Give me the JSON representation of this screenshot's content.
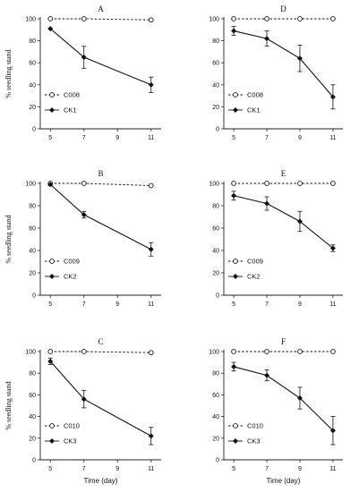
{
  "figure": {
    "ylabel": "% seedling stand",
    "xlabel": "Time (day)"
  },
  "chart_data": [
    {
      "type": "line",
      "title": "A",
      "x": [
        5,
        7,
        11
      ],
      "xticks": [
        5,
        7,
        9,
        11
      ],
      "ylim": [
        0,
        100
      ],
      "yticks": [
        0,
        20,
        40,
        60,
        80,
        100
      ],
      "ylabel": "% seedling stand",
      "xlabel": "",
      "legend_position": "left",
      "series": [
        {
          "name": "C008",
          "values": [
            100,
            100,
            99
          ],
          "errors": [
            0,
            0,
            0
          ],
          "style": "dashed-open-circle"
        },
        {
          "name": "CK1",
          "values": [
            91,
            65,
            40
          ],
          "errors": [
            0,
            10,
            7
          ],
          "style": "solid-filled-diamond"
        }
      ]
    },
    {
      "type": "line",
      "title": "D",
      "x": [
        5,
        7,
        9,
        11
      ],
      "xticks": [
        5,
        7,
        9,
        11
      ],
      "ylim": [
        0,
        100
      ],
      "yticks": [
        0,
        20,
        40,
        60,
        80,
        100
      ],
      "ylabel": "",
      "xlabel": "",
      "legend_position": "left",
      "series": [
        {
          "name": "C008",
          "values": [
            100,
            100,
            100,
            100
          ],
          "errors": [
            0,
            0,
            0,
            0
          ],
          "style": "dashed-open-circle"
        },
        {
          "name": "CK1",
          "values": [
            89,
            82,
            64,
            29
          ],
          "errors": [
            4,
            7,
            12,
            11
          ],
          "style": "solid-filled-diamond"
        }
      ]
    },
    {
      "type": "line",
      "title": "B",
      "x": [
        5,
        7,
        11
      ],
      "xticks": [
        5,
        7,
        9,
        11
      ],
      "ylim": [
        0,
        100
      ],
      "yticks": [
        0,
        20,
        40,
        60,
        80,
        100
      ],
      "ylabel": "% seedling stand",
      "xlabel": "",
      "legend_position": "left",
      "series": [
        {
          "name": "C009",
          "values": [
            100,
            100,
            98
          ],
          "errors": [
            0,
            0,
            0
          ],
          "style": "dashed-open-circle"
        },
        {
          "name": "CK2",
          "values": [
            99,
            72,
            41
          ],
          "errors": [
            1,
            3,
            6
          ],
          "style": "solid-filled-diamond"
        }
      ]
    },
    {
      "type": "line",
      "title": "E",
      "x": [
        5,
        7,
        9,
        11
      ],
      "xticks": [
        5,
        7,
        9,
        11
      ],
      "ylim": [
        0,
        100
      ],
      "yticks": [
        0,
        20,
        40,
        60,
        80,
        100
      ],
      "ylabel": "",
      "xlabel": "",
      "legend_position": "left",
      "series": [
        {
          "name": "C009",
          "values": [
            100,
            100,
            100,
            100
          ],
          "errors": [
            0,
            0,
            0,
            0
          ],
          "style": "dashed-open-circle"
        },
        {
          "name": "CK2",
          "values": [
            89,
            82,
            66,
            42
          ],
          "errors": [
            4,
            6,
            9,
            3
          ],
          "style": "solid-filled-diamond"
        }
      ]
    },
    {
      "type": "line",
      "title": "C",
      "x": [
        5,
        7,
        11
      ],
      "xticks": [
        5,
        7,
        9,
        11
      ],
      "ylim": [
        0,
        100
      ],
      "yticks": [
        0,
        20,
        40,
        60,
        80,
        100
      ],
      "ylabel": "% seedling stand",
      "xlabel": "Time (day)",
      "legend_position": "left",
      "series": [
        {
          "name": "C010",
          "values": [
            100,
            100,
            99
          ],
          "errors": [
            0,
            0,
            0
          ],
          "style": "dashed-open-circle"
        },
        {
          "name": "CK3",
          "values": [
            91,
            56,
            22
          ],
          "errors": [
            3,
            8,
            8
          ],
          "style": "solid-filled-diamond"
        }
      ]
    },
    {
      "type": "line",
      "title": "F",
      "x": [
        5,
        7,
        9,
        11
      ],
      "xticks": [
        5,
        7,
        9,
        11
      ],
      "ylim": [
        0,
        100
      ],
      "yticks": [
        0,
        20,
        40,
        60,
        80,
        100
      ],
      "ylabel": "",
      "xlabel": "Time (day)",
      "legend_position": "left",
      "series": [
        {
          "name": "C010",
          "values": [
            100,
            100,
            100,
            100
          ],
          "errors": [
            0,
            0,
            0,
            0
          ],
          "style": "dashed-open-circle"
        },
        {
          "name": "CK3",
          "values": [
            86,
            78,
            57,
            27
          ],
          "errors": [
            4,
            5,
            10,
            13
          ],
          "style": "solid-filled-diamond"
        }
      ]
    }
  ]
}
